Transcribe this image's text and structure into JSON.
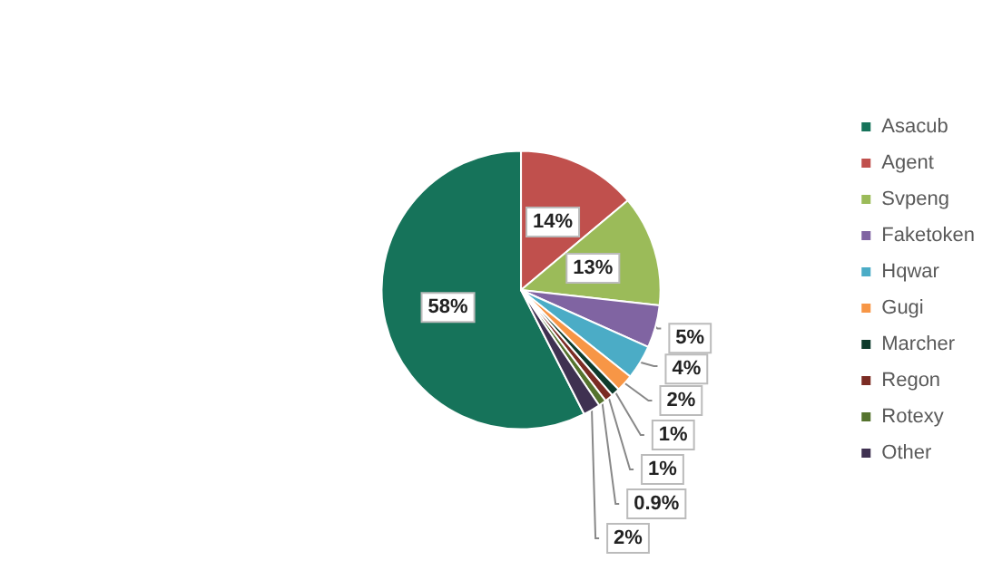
{
  "chart_data": {
    "type": "pie",
    "categories": [
      "Asacub",
      "Agent",
      "Svpeng",
      "Faketoken",
      "Hqwar",
      "Gugi",
      "Marcher",
      "Regon",
      "Rotexy",
      "Other"
    ],
    "values": [
      58,
      14,
      13,
      5,
      4,
      2,
      1,
      1,
      0.9,
      2
    ],
    "value_labels": [
      "58%",
      "14%",
      "13%",
      "5%",
      "4%",
      "2%",
      "1%",
      "1%",
      "0.9%",
      "2%"
    ],
    "colors": [
      "#16735a",
      "#c0504d",
      "#9bbb59",
      "#8064a2",
      "#4bacc6",
      "#f79646",
      "#0e3b2c",
      "#7b2c24",
      "#55732e",
      "#3f3151"
    ],
    "legend": "right"
  }
}
